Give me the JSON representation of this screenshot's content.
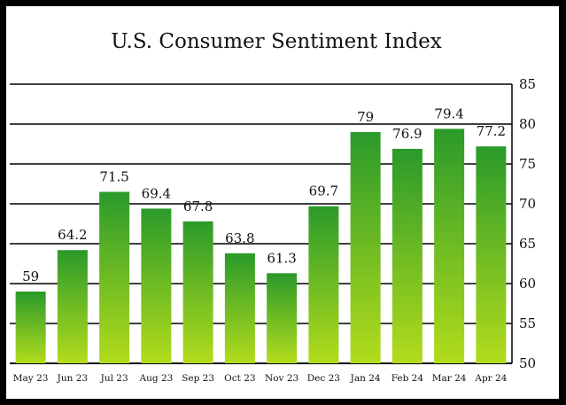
{
  "chart_data": {
    "type": "bar",
    "title": "U.S. Consumer Sentiment Index",
    "xlabel": "",
    "ylabel": "",
    "categories": [
      "May 23",
      "Jun 23",
      "Jul 23",
      "Aug 23",
      "Sep 23",
      "Oct 23",
      "Nov 23",
      "Dec 23",
      "Jan 24",
      "Feb 24",
      "Mar 24",
      "Apr 24"
    ],
    "values": [
      59,
      64.2,
      71.5,
      69.4,
      67.8,
      63.8,
      61.3,
      69.7,
      79,
      76.9,
      79.4,
      77.2
    ],
    "data_labels": [
      "59",
      "64.2",
      "71.5",
      "69.4",
      "67.8",
      "63.8",
      "61.3",
      "69.7",
      "79",
      "76.9",
      "79.4",
      "77.2"
    ],
    "ylim": [
      50,
      85
    ],
    "yticks": [
      50,
      55,
      60,
      65,
      70,
      75,
      80,
      85
    ],
    "y_axis_side": "right",
    "grid": true,
    "legend": "none",
    "colors": {
      "bar_top": "#2a9a2a",
      "bar_bottom": "#b3dc1c",
      "grid": "#000000",
      "frame": "#000000"
    }
  }
}
